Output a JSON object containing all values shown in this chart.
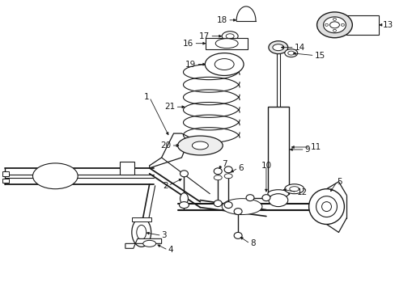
{
  "bg_color": "#ffffff",
  "line_color": "#1a1a1a",
  "fig_width": 4.89,
  "fig_height": 3.6,
  "dpi": 100,
  "font_size": 7.5
}
